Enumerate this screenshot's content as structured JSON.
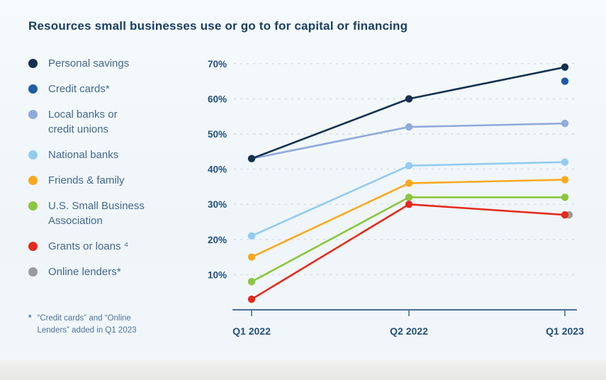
{
  "title": "Resources small businesses use or go to for capital or financing",
  "legend": {
    "items": [
      {
        "id": "personal-savings",
        "label": "Personal savings",
        "color": "#14304f"
      },
      {
        "id": "credit-cards",
        "label": "Credit cards*",
        "color": "#1e5ca6"
      },
      {
        "id": "local-banks",
        "label": "Local banks or\ncredit unions",
        "color": "#90aadb"
      },
      {
        "id": "national-banks",
        "label": "National banks",
        "color": "#93ccf0"
      },
      {
        "id": "friends-family",
        "label": "Friends & family",
        "color": "#f9a91f"
      },
      {
        "id": "sba",
        "label": "U.S. Small Business\nAssociation",
        "color": "#8cc63f"
      },
      {
        "id": "grants-loans",
        "label": "Grants or loans ⁴",
        "color": "#e52b1d"
      },
      {
        "id": "online-lenders",
        "label": "Online lenders*",
        "color": "#9b9b9b"
      }
    ]
  },
  "footnote": {
    "marker": "*",
    "text": "“Credit cards” and “Online\nLenders” added in Q1 2023"
  },
  "chart_data": {
    "type": "line",
    "x": [
      "Q1 2022",
      "Q2 2022",
      "Q1 2023"
    ],
    "series": [
      {
        "name": "Personal savings",
        "color": "#14304f",
        "values": [
          43,
          60,
          69
        ]
      },
      {
        "name": "Credit cards*",
        "color": "#1e5ca6",
        "values": [
          null,
          null,
          65
        ]
      },
      {
        "name": "Local banks or credit unions",
        "color": "#90aadb",
        "values": [
          43,
          52,
          53
        ]
      },
      {
        "name": "National banks",
        "color": "#93ccf0",
        "values": [
          21,
          41,
          42
        ]
      },
      {
        "name": "Friends & family",
        "color": "#f9a91f",
        "values": [
          15,
          36,
          37
        ]
      },
      {
        "name": "U.S. Small Business Association",
        "color": "#8cc63f",
        "values": [
          8,
          32,
          32
        ]
      },
      {
        "name": "Grants or loans ⁴",
        "color": "#e52b1d",
        "values": [
          3,
          30,
          27
        ]
      },
      {
        "name": "Online lenders*",
        "color": "#9b9b9b",
        "values": [
          null,
          null,
          27
        ]
      }
    ],
    "y_ticks": [
      "10%",
      "20%",
      "30%",
      "40%",
      "50%",
      "60%",
      "70%"
    ],
    "ylim": [
      0,
      75
    ],
    "xlabel": "",
    "ylabel": "",
    "grid": "dashed-horizontal",
    "legend_position": "left"
  }
}
